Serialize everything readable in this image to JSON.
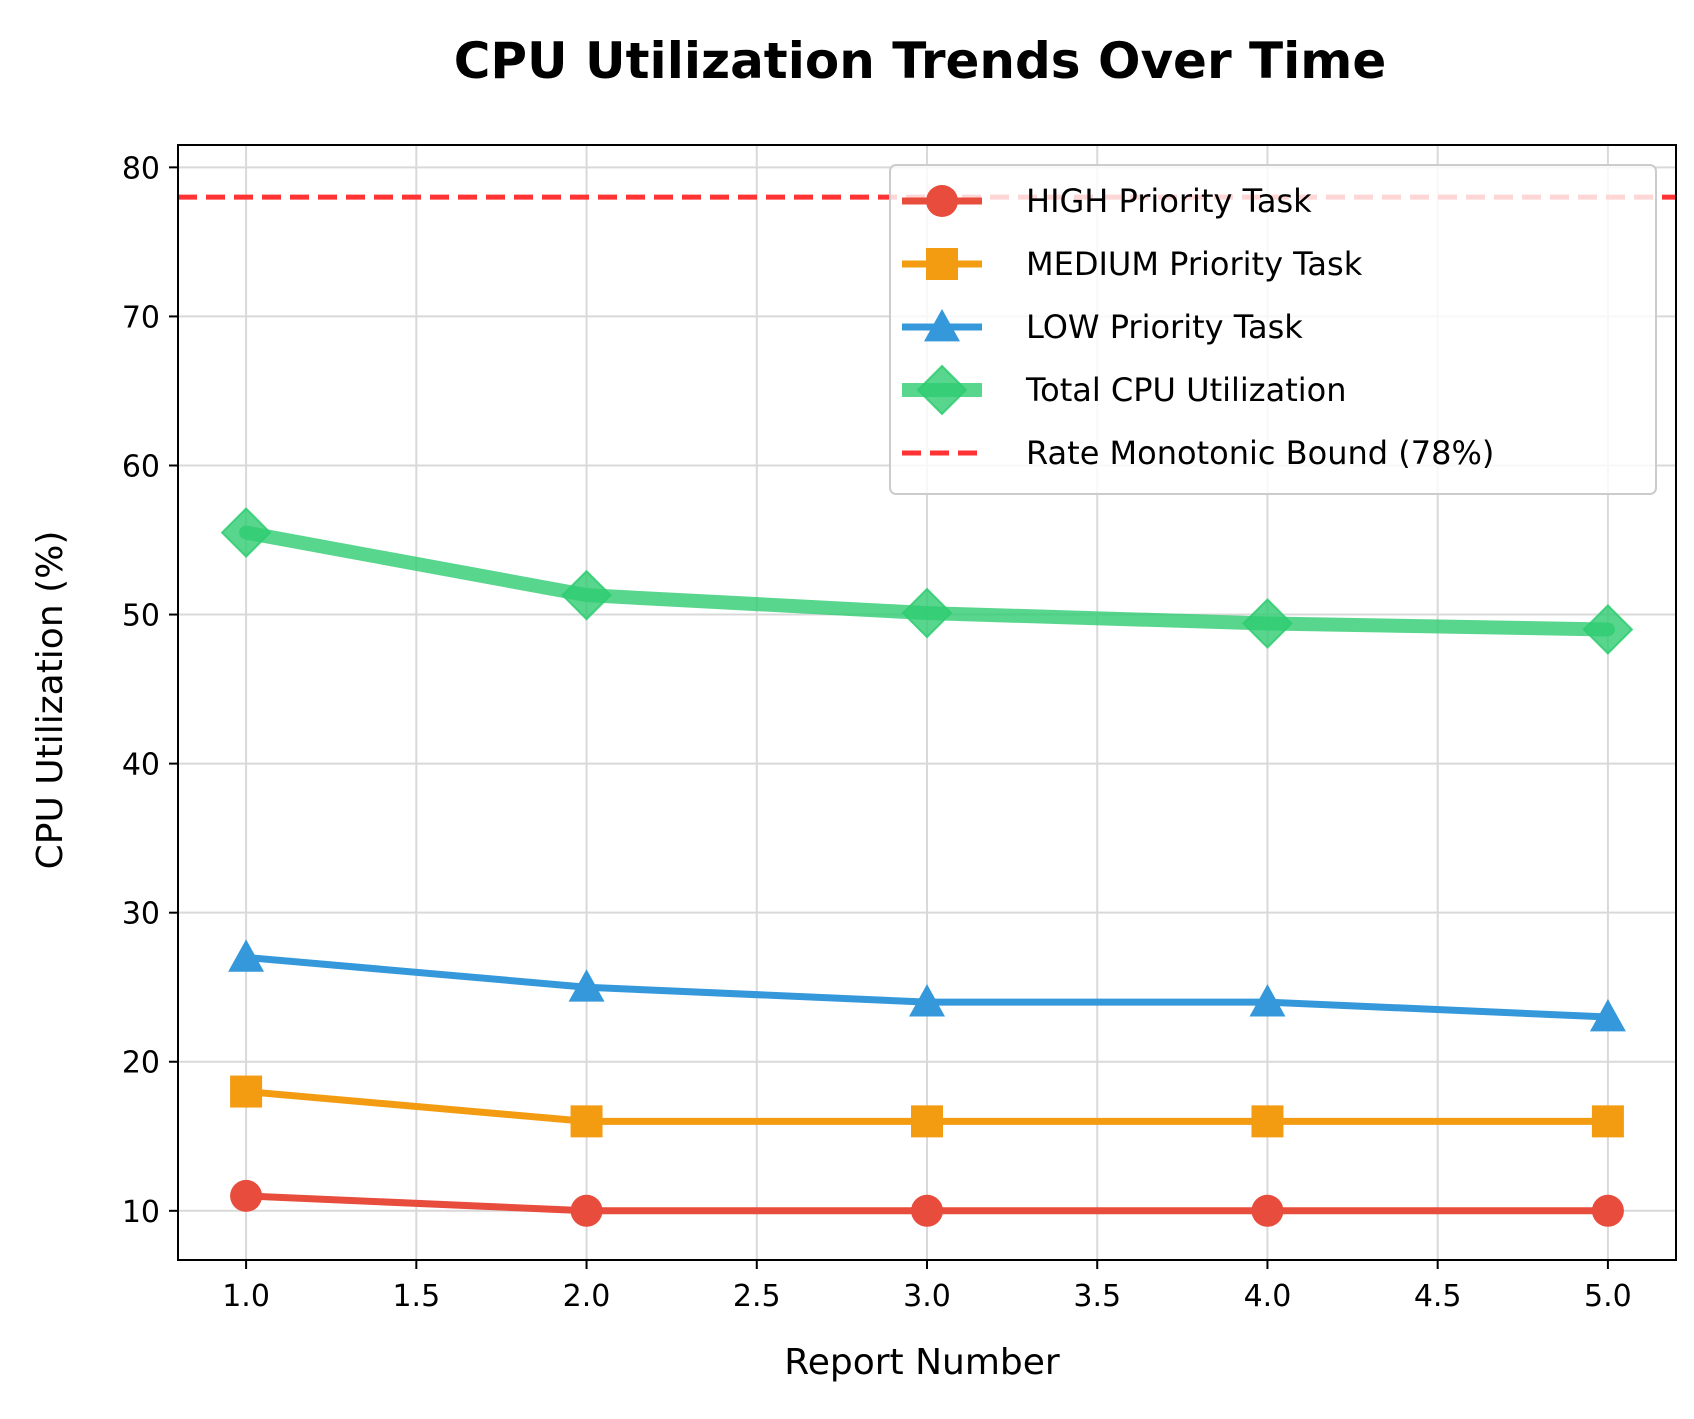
{
  "chart_data": {
    "type": "line",
    "title": "CPU Utilization Trends Over Time",
    "xlabel": "Report Number",
    "ylabel": "CPU Utilization (%)",
    "x": [
      1.0,
      2.0,
      3.0,
      4.0,
      5.0
    ],
    "xlim": [
      0.8,
      5.2
    ],
    "ylim": [
      6.7,
      81.5
    ],
    "xticks": [
      "1.0",
      "1.5",
      "2.0",
      "2.5",
      "3.0",
      "3.5",
      "4.0",
      "4.5",
      "5.0"
    ],
    "yticks": [
      "10",
      "20",
      "30",
      "40",
      "50",
      "60",
      "70",
      "80"
    ],
    "grid": true,
    "legend_position": "top-right",
    "series": [
      {
        "name": "HIGH Priority Task",
        "values": [
          11,
          10,
          10,
          10,
          10
        ],
        "color": "#e74c3c",
        "marker": "circle"
      },
      {
        "name": "MEDIUM Priority Task",
        "values": [
          18,
          16,
          16,
          16,
          16
        ],
        "color": "#f39c12",
        "marker": "square"
      },
      {
        "name": "LOW Priority Task",
        "values": [
          27,
          25,
          24,
          24,
          23
        ],
        "color": "#3498db",
        "marker": "triangle"
      },
      {
        "name": "Total CPU Utilization",
        "values": [
          55.5,
          51.3,
          50.1,
          49.4,
          49.0
        ],
        "color": "#2ecc71",
        "marker": "diamond"
      }
    ],
    "reference_line": {
      "name": "Rate Monotonic Bound (78%)",
      "value": 78,
      "color": "#ff3333",
      "style": "dashed"
    }
  }
}
